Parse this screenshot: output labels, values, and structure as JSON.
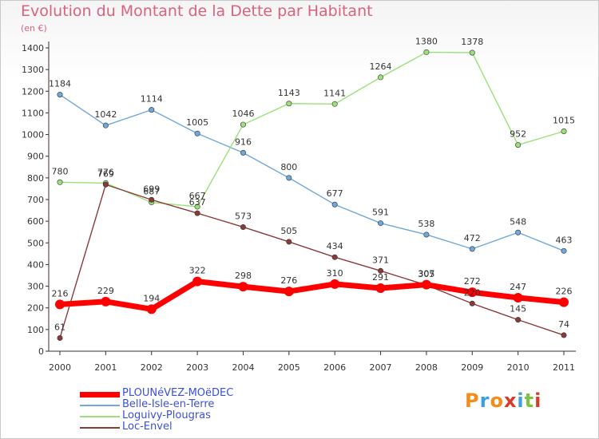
{
  "title": "Evolution du Montant de la Dette par Habitant",
  "unit": "(en €)",
  "logo": "Proxiti",
  "chart_data": {
    "type": "line",
    "x": [
      "2000",
      "2001",
      "2002",
      "2003",
      "2004",
      "2005",
      "2006",
      "2007",
      "2008",
      "2009",
      "2010",
      "2011"
    ],
    "ylim": [
      0,
      1400
    ],
    "yticks": [
      0,
      100,
      200,
      300,
      400,
      500,
      600,
      700,
      800,
      900,
      1000,
      1100,
      1200,
      1300,
      1400
    ],
    "grid": false,
    "legend_position": "bottom-left",
    "series": [
      {
        "name": "PLOUNéVEZ-MOëDEC",
        "color": "#ff0000",
        "values": [
          216,
          229,
          194,
          322,
          298,
          276,
          310,
          291,
          307,
          272,
          247,
          226
        ]
      },
      {
        "name": "Belle-Isle-en-Terre",
        "color": "#6fa8dc",
        "values": [
          1184,
          1042,
          1114,
          1005,
          916,
          800,
          677,
          591,
          538,
          472,
          548,
          463
        ]
      },
      {
        "name": "Loguivy-Plougras",
        "color": "#9be07a",
        "values": [
          780,
          776,
          687,
          667,
          1046,
          1143,
          1141,
          1264,
          1380,
          1378,
          952,
          1015
        ]
      },
      {
        "name": "Loc-Envel",
        "color": "#8b3a3a",
        "values": [
          61,
          769,
          699,
          637,
          573,
          505,
          434,
          371,
          305,
          220,
          145,
          74
        ]
      }
    ]
  }
}
